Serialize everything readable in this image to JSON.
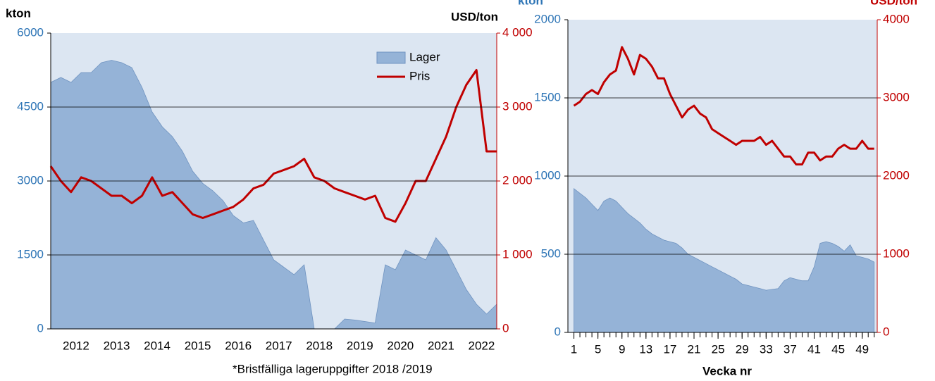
{
  "chart_data": [
    {
      "type": "line",
      "y_label": "kton",
      "y2_label": "USD/ton",
      "note": "*Bristfälliga lageruppgifter  2018 /2019",
      "categories": [
        null,
        null,
        null,
        "2012",
        null,
        null,
        null,
        "2013",
        null,
        null,
        null,
        "2014",
        null,
        null,
        null,
        "2015",
        null,
        null,
        null,
        "2016",
        null,
        null,
        null,
        "2017",
        null,
        null,
        null,
        "2018",
        null,
        null,
        null,
        "2019",
        null,
        null,
        null,
        "2020",
        null,
        null,
        null,
        "2021",
        null,
        null,
        null,
        "2022",
        null
      ],
      "series": [
        {
          "name": "Lager",
          "type": "area",
          "color": "#95b3d7",
          "axis": "y",
          "values": [
            5000,
            5100,
            5000,
            5200,
            5200,
            5400,
            5450,
            5400,
            5300,
            4900,
            4400,
            4100,
            3900,
            3600,
            3200,
            2950,
            2800,
            2600,
            2300,
            2150,
            2200,
            1800,
            1400,
            1250,
            1100,
            1300,
            0,
            0,
            0,
            200,
            180,
            150,
            120,
            1300,
            1200,
            1600,
            1500,
            1400,
            1850,
            1600,
            1200,
            800,
            500,
            300,
            500
          ]
        },
        {
          "name": "Pris",
          "type": "line",
          "color": "#c00000",
          "axis": "y2",
          "values": [
            2200,
            2000,
            1850,
            2050,
            2000,
            1900,
            1800,
            1800,
            1700,
            1800,
            2050,
            1800,
            1850,
            1700,
            1550,
            1500,
            1550,
            1600,
            1650,
            1750,
            1900,
            1950,
            2100,
            2150,
            2200,
            2300,
            2050,
            2000,
            1900,
            1850,
            1800,
            1750,
            1800,
            1500,
            1450,
            1700,
            2000,
            2000,
            2300,
            2600,
            3000,
            3300,
            3500,
            2400,
            2400
          ]
        }
      ],
      "ylim": [
        0,
        6000
      ],
      "yticks": [
        0,
        1500,
        3000,
        4500,
        6000
      ],
      "y2lim": [
        0,
        4000
      ],
      "y2ticks": [
        0,
        {
          "value": 1000,
          "label": "1 000"
        },
        {
          "value": 2000,
          "label": "2 000"
        },
        {
          "value": 3000,
          "label": "3 000"
        },
        {
          "value": 4000,
          "label": "4 000"
        }
      ],
      "grid": true,
      "legend": "upper right"
    },
    {
      "type": "line",
      "y_label": "kton",
      "y2_label": "USD/ton",
      "x_label": "Vecka nr",
      "x": [
        1,
        2,
        3,
        4,
        5,
        6,
        7,
        8,
        9,
        10,
        11,
        12,
        13,
        14,
        15,
        16,
        17,
        18,
        19,
        20,
        21,
        22,
        23,
        24,
        25,
        26,
        27,
        28,
        29,
        30,
        31,
        32,
        33,
        34,
        35,
        36,
        37,
        38,
        39,
        40,
        41,
        42,
        43,
        44,
        45,
        46,
        47,
        48,
        49,
        50,
        51
      ],
      "series": [
        {
          "type": "area",
          "color": "#95b3d7",
          "axis": "y",
          "values": [
            920,
            890,
            860,
            820,
            780,
            840,
            860,
            840,
            800,
            760,
            730,
            700,
            660,
            630,
            610,
            590,
            580,
            570,
            540,
            500,
            480,
            460,
            440,
            420,
            400,
            380,
            360,
            340,
            310,
            300,
            290,
            280,
            270,
            275,
            280,
            330,
            350,
            340,
            330,
            330,
            420,
            570,
            580,
            570,
            550,
            520,
            560,
            490,
            480,
            470,
            450
          ]
        },
        {
          "type": "line",
          "color": "#c00000",
          "axis": "y2",
          "values": [
            2900,
            2950,
            3050,
            3100,
            3050,
            3200,
            3300,
            3350,
            3650,
            3500,
            3300,
            3550,
            3500,
            3400,
            3250,
            3250,
            3050,
            2900,
            2750,
            2850,
            2900,
            2800,
            2750,
            2600,
            2550,
            2500,
            2450,
            2400,
            2450,
            2450,
            2450,
            2500,
            2400,
            2450,
            2350,
            2250,
            2250,
            2150,
            2150,
            2300,
            2300,
            2200,
            2250,
            2250,
            2350,
            2400,
            2350,
            2350,
            2450,
            2350,
            2350
          ]
        }
      ],
      "xlim": [
        0,
        51.5
      ],
      "xticks": [
        1,
        5,
        9,
        13,
        17,
        21,
        25,
        29,
        33,
        37,
        41,
        45,
        49
      ],
      "ylim": [
        0,
        2000
      ],
      "yticks": [
        0,
        500,
        1000,
        1500,
        2000
      ],
      "y2lim": [
        0,
        4000
      ],
      "y2ticks": [
        0,
        1000,
        2000,
        3000,
        4000
      ],
      "grid": true
    }
  ]
}
